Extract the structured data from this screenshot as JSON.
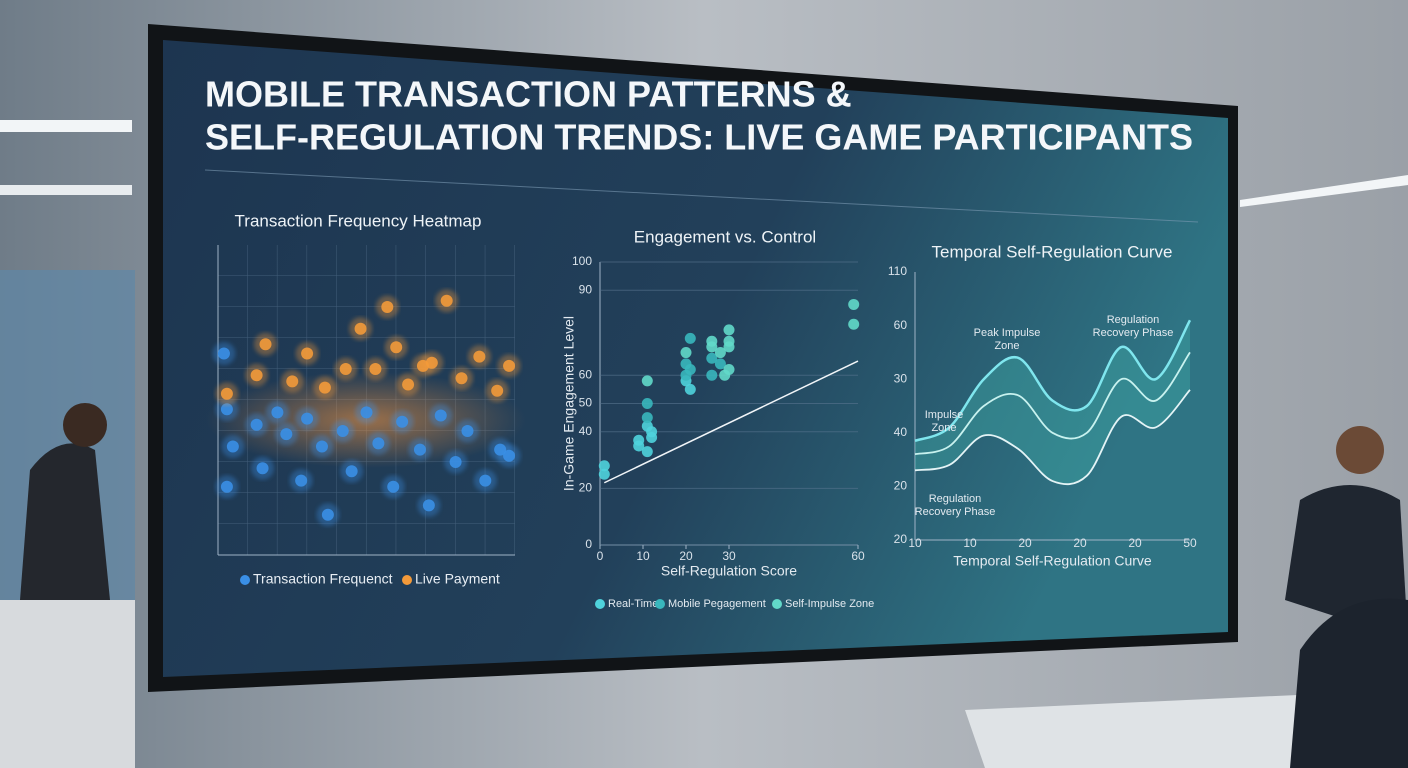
{
  "title_lines": [
    "MOBILE TRANSACTION PATTERNS &",
    "SELF-REGULATION TRENDS: LIVE GAME PARTICIPANTS"
  ],
  "chart_data": [
    {
      "type": "scatter",
      "title": "Transaction Frequency Heatmap",
      "xlim": [
        0,
        10
      ],
      "ylim": [
        0,
        10
      ],
      "series": [
        {
          "name": "Transaction Frequenct",
          "color": "#3a8fe6",
          "x": [
            0.2,
            0.3,
            0.5,
            0.3,
            1.3,
            1.5,
            2,
            2.3,
            2.8,
            3,
            3.5,
            3.7,
            4.2,
            4.5,
            5,
            5.4,
            5.9,
            6.2,
            6.8,
            7.1,
            7.5,
            8,
            8.4,
            9,
            9.5,
            9.8
          ],
          "values": [
            6.5,
            4.7,
            3.5,
            2.2,
            4.2,
            2.8,
            4.6,
            3.9,
            2.4,
            4.4,
            3.5,
            1.3,
            4.0,
            2.7,
            4.6,
            3.6,
            2.2,
            4.3,
            3.4,
            1.6,
            4.5,
            3.0,
            4.0,
            2.4,
            3.4,
            3.2
          ]
        },
        {
          "name": "Live Payment",
          "color": "#f39a3a",
          "x": [
            0.3,
            1.3,
            1.6,
            2.5,
            3,
            3.6,
            4.3,
            4.8,
            5.3,
            5.7,
            6,
            6.4,
            6.9,
            7.2,
            7.7,
            8.2,
            8.8,
            9.4,
            9.8
          ],
          "values": [
            5.2,
            5.8,
            6.8,
            5.6,
            6.5,
            5.4,
            6.0,
            7.3,
            6.0,
            8.0,
            6.7,
            5.5,
            6.1,
            6.2,
            8.2,
            5.7,
            6.4,
            5.3,
            6.1
          ]
        }
      ]
    },
    {
      "type": "scatter",
      "title": "Engagement vs. Control",
      "x_label": "Self-Regulation Score",
      "y_label": "In-Game Engagement Level",
      "xlim": [
        0,
        60
      ],
      "ylim": [
        0,
        100
      ],
      "xticks": [
        0,
        10,
        20,
        30,
        60
      ],
      "yticks": [
        0,
        20,
        40,
        50,
        60,
        90,
        100
      ],
      "grid": true,
      "series": [
        {
          "name": "Real-Time",
          "color": "#4fd3dc",
          "x": [
            1,
            1,
            9,
            9,
            11,
            11,
            12,
            12,
            20,
            21
          ],
          "values": [
            25,
            28,
            35,
            37,
            33,
            42,
            38,
            40,
            58,
            55
          ]
        },
        {
          "name": "Mobile Pegagement",
          "color": "#39b7bd",
          "x": [
            11,
            11,
            20,
            20,
            21,
            21,
            26,
            26,
            28
          ],
          "values": [
            45,
            50,
            60,
            64,
            62,
            73,
            60,
            66,
            64
          ]
        },
        {
          "name": "Self-Impulse Zone",
          "color": "#62d9c9",
          "x": [
            11,
            20,
            26,
            26,
            28,
            29,
            30,
            30,
            30,
            30,
            59,
            59
          ],
          "values": [
            58,
            68,
            70,
            72,
            68,
            60,
            62,
            70,
            72,
            76,
            85,
            78
          ]
        }
      ],
      "trend": {
        "x": [
          1,
          60
        ],
        "values": [
          22,
          65
        ]
      }
    },
    {
      "type": "line",
      "title": "Temporal Self-Regulation Curve",
      "x_label": "Temporal Self-Regulation Curve",
      "x_labels": [
        "10",
        "10",
        "20",
        "20",
        "20",
        "50"
      ],
      "y_labels": [
        "110",
        "60",
        "30",
        "40",
        "20",
        "20"
      ],
      "xlim": [
        0,
        8
      ],
      "ylim": [
        0,
        5
      ],
      "x": [
        0,
        1,
        2,
        3,
        4,
        5,
        6,
        7,
        8
      ],
      "series": [
        {
          "color": "#7fe6ee",
          "values": [
            1.85,
            2.1,
            3.0,
            3.4,
            2.6,
            2.5,
            3.6,
            3.0,
            4.1
          ]
        },
        {
          "color": "#c8f2ef",
          "values": [
            1.6,
            1.75,
            2.5,
            2.7,
            2.0,
            2.0,
            3.0,
            2.6,
            3.5
          ]
        },
        {
          "color": "#e4f4f6",
          "values": [
            1.3,
            1.4,
            1.95,
            1.7,
            1.1,
            1.2,
            2.3,
            2.1,
            2.8
          ]
        }
      ],
      "annotations": [
        {
          "text": [
            "Peak Impulse",
            "Zone"
          ]
        },
        {
          "text": [
            "Regulation",
            "Recovery Phase"
          ]
        },
        {
          "text": [
            "Impulse",
            "Zone"
          ]
        },
        {
          "text": [
            "Regulation",
            "Recovery Phase"
          ]
        }
      ]
    }
  ]
}
